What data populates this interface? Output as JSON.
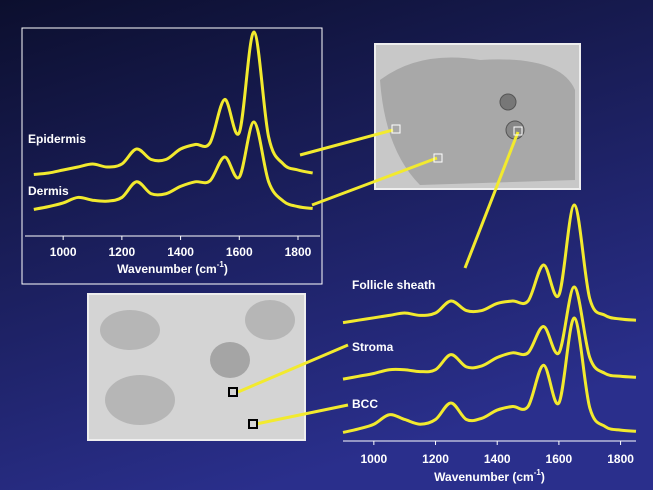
{
  "chart_data": [
    {
      "type": "line",
      "x": [
        900,
        950,
        1000,
        1050,
        1100,
        1150,
        1200,
        1250,
        1300,
        1350,
        1400,
        1450,
        1500,
        1550,
        1600,
        1650,
        1700,
        1750,
        1800,
        1850
      ],
      "xlim": [
        870,
        1875
      ],
      "ylim": [
        0,
        1
      ],
      "xticks": [
        1000,
        1200,
        1400,
        1600,
        1800
      ],
      "x_label": "Wavenumber (cm",
      "x_label_sup": "-1",
      "x_label_end": ")",
      "series": [
        {
          "name": "Epidermis",
          "color": "#f2ea2e",
          "values": [
            0.05,
            0.06,
            0.08,
            0.1,
            0.12,
            0.1,
            0.12,
            0.22,
            0.15,
            0.15,
            0.22,
            0.25,
            0.26,
            0.55,
            0.33,
            1.0,
            0.3,
            0.12,
            0.08,
            0.06
          ]
        },
        {
          "name": "Dermis",
          "color": "#f2ea2e",
          "values": [
            0.05,
            0.08,
            0.12,
            0.18,
            0.15,
            0.14,
            0.18,
            0.35,
            0.22,
            0.22,
            0.3,
            0.35,
            0.36,
            0.62,
            0.4,
            1.0,
            0.35,
            0.14,
            0.08,
            0.06
          ]
        }
      ]
    },
    {
      "type": "line",
      "x": [
        900,
        950,
        1000,
        1050,
        1100,
        1150,
        1200,
        1250,
        1300,
        1350,
        1400,
        1450,
        1500,
        1550,
        1600,
        1650,
        1700,
        1750,
        1800,
        1850
      ],
      "xlim": [
        900,
        1850
      ],
      "ylim": [
        0,
        1
      ],
      "xticks": [
        1000,
        1200,
        1400,
        1600,
        1800
      ],
      "x_label": "Wavenumber (cm",
      "x_label_sup": "-1",
      "x_label_end": ")",
      "series": [
        {
          "name": "Follicle sheath",
          "color": "#f2ea2e",
          "values": [
            0.02,
            0.04,
            0.06,
            0.08,
            0.1,
            0.08,
            0.1,
            0.2,
            0.12,
            0.12,
            0.18,
            0.2,
            0.2,
            0.5,
            0.25,
            1.0,
            0.22,
            0.08,
            0.05,
            0.04
          ]
        },
        {
          "name": "Stroma",
          "color": "#f2ea2e",
          "values": [
            0.02,
            0.05,
            0.08,
            0.12,
            0.12,
            0.1,
            0.12,
            0.28,
            0.15,
            0.16,
            0.25,
            0.3,
            0.3,
            0.58,
            0.3,
            1.0,
            0.25,
            0.08,
            0.05,
            0.04
          ]
        },
        {
          "name": "BCC",
          "color": "#f2ea2e",
          "values": [
            0.03,
            0.06,
            0.1,
            0.18,
            0.14,
            0.1,
            0.14,
            0.28,
            0.14,
            0.15,
            0.22,
            0.25,
            0.25,
            0.6,
            0.28,
            1.0,
            0.24,
            0.08,
            0.05,
            0.04
          ]
        }
      ]
    }
  ]
}
